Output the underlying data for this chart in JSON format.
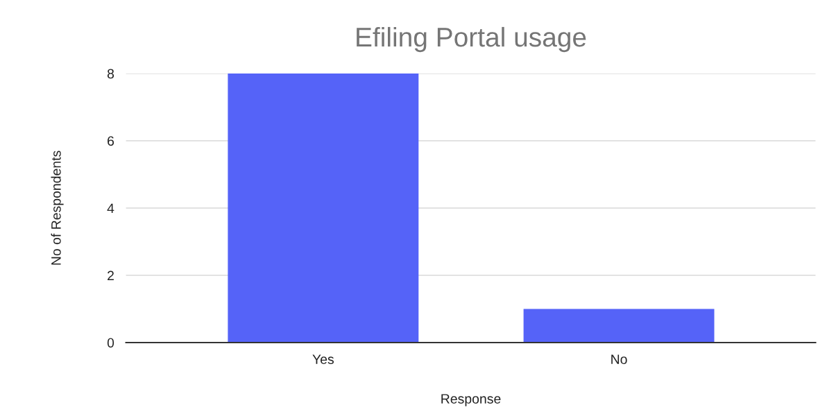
{
  "chart_data": {
    "type": "bar",
    "title": "Efiling Portal usage",
    "xlabel": "Response",
    "ylabel": "No of Respondents",
    "categories": [
      "Yes",
      "No"
    ],
    "values": [
      8,
      1
    ],
    "color": "#5563f8",
    "ylim": [
      0,
      8
    ],
    "yticks": [
      0,
      2,
      4,
      6,
      8
    ],
    "grid": "y",
    "legend": false
  }
}
